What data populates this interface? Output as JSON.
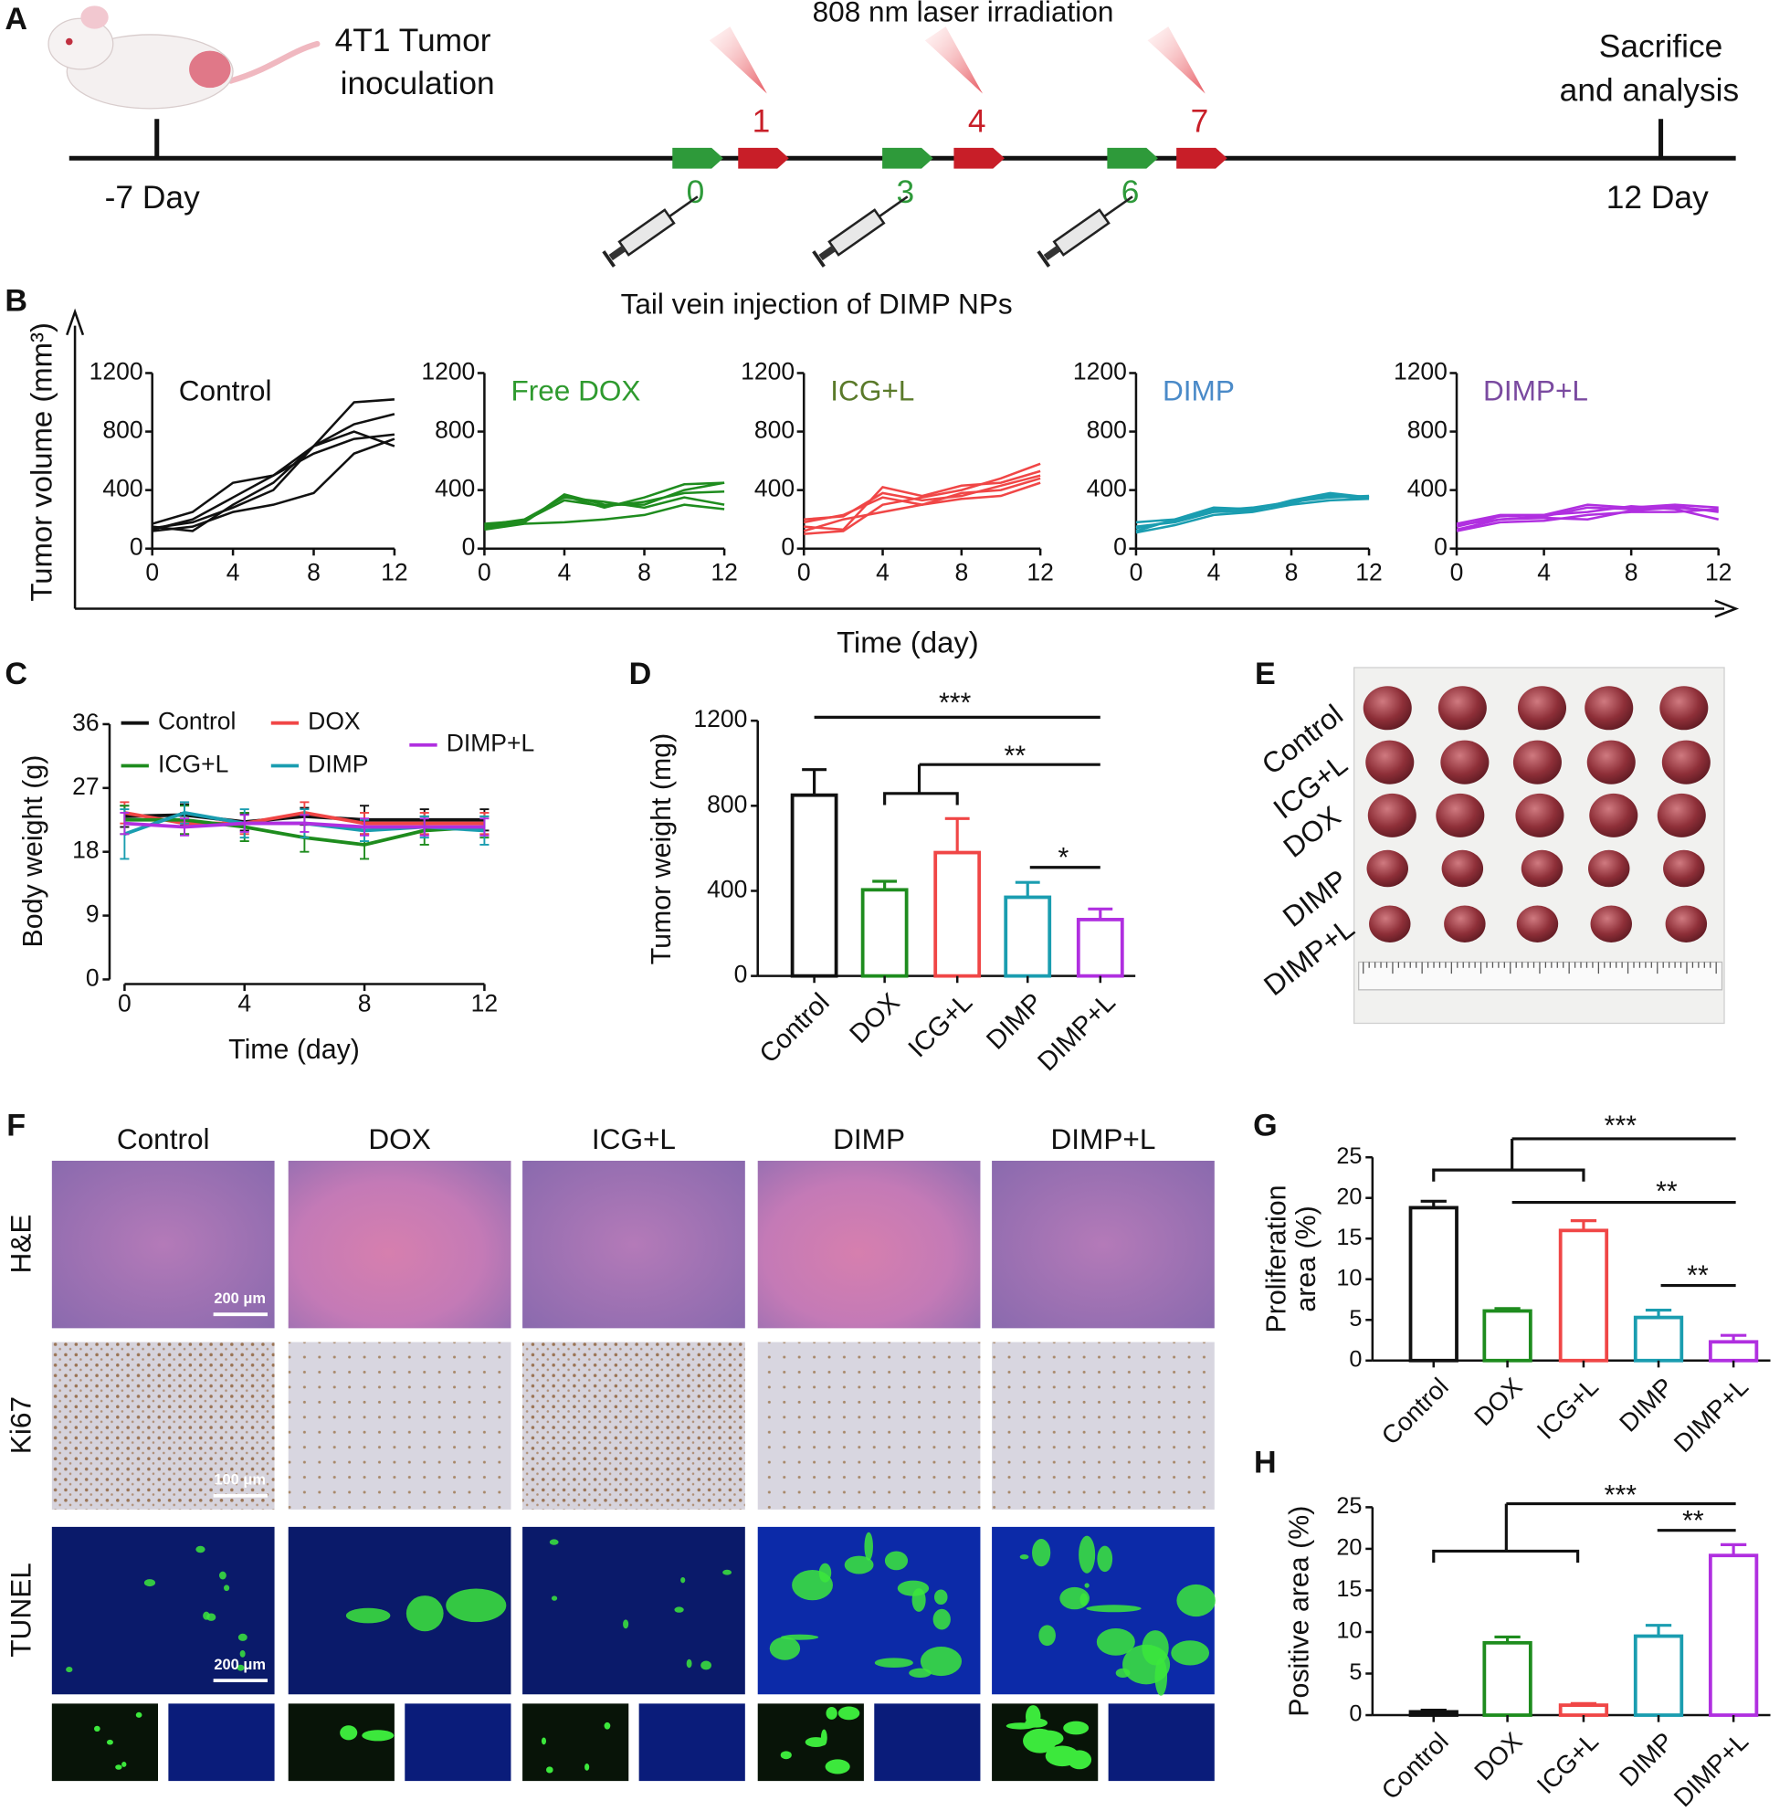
{
  "panels": [
    "A",
    "B",
    "C",
    "D",
    "E",
    "F",
    "G",
    "H"
  ],
  "timeline": {
    "inoculation": [
      "4T1 Tumor",
      "inoculation"
    ],
    "laser": "808 nm laser irradiation",
    "sacrifice": [
      "Sacrifice",
      "and analysis"
    ],
    "start_label": "-7 Day",
    "end_label": "12 Day",
    "injection_days": [
      0,
      3,
      6
    ],
    "laser_days": [
      1,
      4,
      7
    ],
    "injection": "Tail vein injection of DIMP NPs"
  },
  "panel_b_axes": {
    "ylabel": "Tumor volume (mm³)",
    "xlabel": "Time (day)"
  },
  "chart_data": [
    {
      "type": "line",
      "title": "Control",
      "title_color": "#111111",
      "x": [
        0,
        2,
        4,
        6,
        8,
        10,
        12
      ],
      "xlim": [
        0,
        12
      ],
      "xticks": [
        0,
        4,
        8,
        12
      ],
      "ylim": [
        0,
        1200
      ],
      "yticks": [
        0,
        400,
        800,
        1200
      ],
      "series": [
        {
          "color": "#111111",
          "values": [
            150,
            120,
            300,
            450,
            700,
            1000,
            1020
          ]
        },
        {
          "color": "#111111",
          "values": [
            130,
            200,
            350,
            500,
            700,
            800,
            700
          ]
        },
        {
          "color": "#111111",
          "values": [
            170,
            250,
            450,
            500,
            650,
            750,
            780
          ]
        },
        {
          "color": "#111111",
          "values": [
            140,
            180,
            280,
            400,
            700,
            850,
            920
          ]
        },
        {
          "color": "#111111",
          "values": [
            120,
            150,
            250,
            300,
            380,
            650,
            750
          ]
        }
      ]
    },
    {
      "type": "line",
      "title": "Free DOX",
      "title_color": "#2e9a2e",
      "x": [
        0,
        2,
        4,
        6,
        8,
        10,
        12
      ],
      "xlim": [
        0,
        12
      ],
      "xticks": [
        0,
        4,
        8,
        12
      ],
      "ylim": [
        0,
        1200
      ],
      "yticks": [
        0,
        400,
        800,
        1200
      ],
      "series": [
        {
          "color": "#1e8c1e",
          "values": [
            140,
            180,
            370,
            300,
            300,
            400,
            450
          ]
        },
        {
          "color": "#1e8c1e",
          "values": [
            160,
            200,
            350,
            320,
            280,
            350,
            300
          ]
        },
        {
          "color": "#1e8c1e",
          "values": [
            130,
            170,
            180,
            200,
            230,
            300,
            270
          ]
        },
        {
          "color": "#1e8c1e",
          "values": [
            150,
            180,
            360,
            280,
            350,
            440,
            450
          ]
        },
        {
          "color": "#1e8c1e",
          "values": [
            170,
            190,
            330,
            290,
            320,
            380,
            390
          ]
        }
      ]
    },
    {
      "type": "line",
      "title": "ICG+L",
      "title_color": "#5a7a2a",
      "x": [
        0,
        2,
        4,
        6,
        8,
        10,
        12
      ],
      "xlim": [
        0,
        12
      ],
      "xticks": [
        0,
        4,
        8,
        12
      ],
      "ylim": [
        0,
        1200
      ],
      "yticks": [
        0,
        400,
        800,
        1200
      ],
      "series": [
        {
          "color": "#f04646",
          "values": [
            100,
            120,
            300,
            350,
            400,
            480,
            580
          ]
        },
        {
          "color": "#f04646",
          "values": [
            150,
            130,
            420,
            360,
            430,
            450,
            530
          ]
        },
        {
          "color": "#f04646",
          "values": [
            180,
            230,
            350,
            300,
            380,
            400,
            480
          ]
        },
        {
          "color": "#f04646",
          "values": [
            120,
            200,
            250,
            300,
            340,
            360,
            450
          ]
        },
        {
          "color": "#f04646",
          "values": [
            200,
            220,
            380,
            330,
            360,
            430,
            500
          ]
        }
      ]
    },
    {
      "type": "line",
      "title": "DIMP",
      "title_color": "#4a8ac8",
      "x": [
        0,
        2,
        4,
        6,
        8,
        10,
        12
      ],
      "xlim": [
        0,
        12
      ],
      "xticks": [
        0,
        4,
        8,
        12
      ],
      "ylim": [
        0,
        1200
      ],
      "yticks": [
        0,
        400,
        800,
        1200
      ],
      "series": [
        {
          "color": "#1a9db0",
          "values": [
            120,
            200,
            260,
            280,
            320,
            360,
            340
          ]
        },
        {
          "color": "#1a9db0",
          "values": [
            150,
            180,
            250,
            260,
            330,
            380,
            350
          ]
        },
        {
          "color": "#1a9db0",
          "values": [
            180,
            200,
            280,
            270,
            320,
            350,
            360
          ]
        },
        {
          "color": "#1a9db0",
          "values": [
            110,
            160,
            230,
            250,
            300,
            330,
            340
          ]
        },
        {
          "color": "#1a9db0",
          "values": [
            140,
            190,
            270,
            270,
            310,
            370,
            350
          ]
        }
      ]
    },
    {
      "type": "line",
      "title": "DIMP+L",
      "title_color": "#7a4aa0",
      "x": [
        0,
        2,
        4,
        6,
        8,
        10,
        12
      ],
      "xlim": [
        0,
        12
      ],
      "xticks": [
        0,
        4,
        8,
        12
      ],
      "ylim": [
        0,
        1200
      ],
      "yticks": [
        0,
        400,
        800,
        1200
      ],
      "series": [
        {
          "color": "#b02fe0",
          "values": [
            150,
            220,
            230,
            300,
            280,
            300,
            280
          ]
        },
        {
          "color": "#b02fe0",
          "values": [
            130,
            200,
            220,
            280,
            270,
            290,
            250
          ]
        },
        {
          "color": "#b02fe0",
          "values": [
            170,
            230,
            230,
            250,
            290,
            270,
            200
          ]
        },
        {
          "color": "#b02fe0",
          "values": [
            160,
            200,
            210,
            200,
            260,
            280,
            260
          ]
        },
        {
          "color": "#b02fe0",
          "values": [
            120,
            180,
            190,
            230,
            250,
            250,
            270
          ]
        }
      ]
    },
    {
      "type": "errorline",
      "xlabel": "Time (day)",
      "ylabel": "Body weight (g)",
      "x": [
        0,
        2,
        4,
        6,
        8,
        10,
        12
      ],
      "xlim": [
        0,
        12
      ],
      "xticks": [
        0,
        4,
        8,
        12
      ],
      "ylim": [
        0,
        36
      ],
      "yticks": [
        0,
        9,
        18,
        27,
        36
      ],
      "series": [
        {
          "name": "Control",
          "color": "#111111",
          "values": [
            23,
            23.2,
            22.2,
            23,
            22.5,
            22.5,
            22.5
          ],
          "errors": [
            1.5,
            1.5,
            1.2,
            1.2,
            2,
            1.5,
            1.5
          ]
        },
        {
          "name": "DOX",
          "color": "#f04646",
          "values": [
            23.5,
            22,
            22,
            23.5,
            22,
            22,
            22
          ],
          "errors": [
            1.5,
            1.5,
            1.5,
            1.5,
            1.5,
            1.5,
            1.5
          ]
        },
        {
          "name": "ICG+L",
          "color": "#1e8c1e",
          "values": [
            22.5,
            22.5,
            21.5,
            20,
            19,
            21,
            21.5
          ],
          "errors": [
            2,
            2,
            2,
            2,
            2,
            2,
            1.5
          ]
        },
        {
          "name": "DIMP",
          "color": "#1a9db0",
          "values": [
            20.5,
            23.5,
            22,
            22,
            21,
            21.5,
            21
          ],
          "errors": [
            3.5,
            1.5,
            2,
            2,
            1.5,
            1.5,
            2
          ]
        },
        {
          "name": "DIMP+L",
          "color": "#b02fe0",
          "values": [
            22,
            21.5,
            22,
            22,
            21.5,
            21.5,
            21.5
          ],
          "errors": [
            1.5,
            1.2,
            1.2,
            1.2,
            1.2,
            1.2,
            1.2
          ]
        }
      ]
    },
    {
      "type": "bar",
      "ylabel": "Tumor weight (mg)",
      "categories": [
        "Control",
        "DOX",
        "ICG+L",
        "DIMP",
        "DIMP+L"
      ],
      "values": [
        850,
        405,
        580,
        370,
        265
      ],
      "errors": [
        120,
        40,
        160,
        70,
        50
      ],
      "colors": [
        "#111111",
        "#1e8c1e",
        "#f04646",
        "#1a9db0",
        "#b02fe0"
      ],
      "ylim": [
        0,
        1200
      ],
      "yticks": [
        0,
        400,
        800,
        1200
      ],
      "annotations": [
        "***",
        "**",
        "*"
      ]
    },
    {
      "type": "bar",
      "ylabel": [
        "Proliferation",
        "area (%)"
      ],
      "categories": [
        "Control",
        "DOX",
        "ICG+L",
        "DIMP",
        "DIMP+L"
      ],
      "values": [
        18.8,
        6.1,
        16,
        5.3,
        2.3
      ],
      "errors": [
        0.8,
        0.3,
        1.2,
        0.9,
        0.8
      ],
      "colors": [
        "#111111",
        "#1e8c1e",
        "#f04646",
        "#1a9db0",
        "#b02fe0"
      ],
      "ylim": [
        0,
        25
      ],
      "yticks": [
        0,
        5,
        10,
        15,
        20,
        25
      ],
      "annotations": [
        "***",
        "**",
        "**"
      ]
    },
    {
      "type": "bar",
      "ylabel": "Positive area (%)",
      "categories": [
        "Control",
        "DOX",
        "ICG+L",
        "DIMP",
        "DIMP+L"
      ],
      "values": [
        0.4,
        8.7,
        1.2,
        9.5,
        19.2
      ],
      "errors": [
        0.2,
        0.7,
        0.2,
        1.3,
        1.3
      ],
      "colors": [
        "#111111",
        "#1e8c1e",
        "#f04646",
        "#1a9db0",
        "#b02fe0"
      ],
      "ylim": [
        0,
        25
      ],
      "yticks": [
        0,
        5,
        10,
        15,
        20,
        25
      ],
      "annotations": [
        "***",
        "**"
      ]
    }
  ],
  "photo": {
    "rows": [
      "Control",
      "ICG+L",
      "DOX",
      "DIMP",
      "DIMP+L"
    ]
  },
  "histology": {
    "columns": [
      "Control",
      "DOX",
      "ICG+L",
      "DIMP",
      "DIMP+L"
    ],
    "rows": [
      "H&E",
      "Ki67",
      "TUNEL"
    ],
    "scale_bars": [
      "200 μm",
      "100 μm",
      "200 μm"
    ]
  }
}
